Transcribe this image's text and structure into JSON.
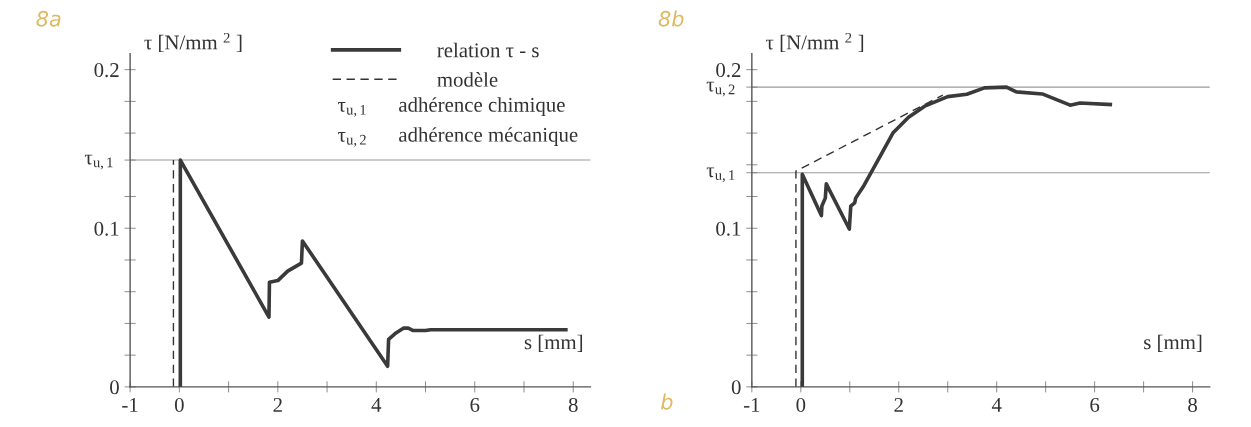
{
  "chart_data": [
    {
      "type": "line",
      "title": "8a",
      "xlabel": "s [mm]",
      "ylabel": "τ [N/mm $^{2}$ ]",
      "xlim": [
        -1,
        8.35
      ],
      "ylim": [
        0,
        0.21
      ],
      "xticks": [
        -1,
        0,
        {
          "value": 1,
          "label": null
        },
        2,
        {
          "value": 3,
          "label": null
        },
        4,
        {
          "value": 5,
          "label": null
        },
        6,
        {
          "value": 7,
          "label": null
        },
        8
      ],
      "yticks": [
        0,
        {
          "value": 0.02,
          "label": null
        },
        {
          "value": 0.04,
          "label": null
        },
        {
          "value": 0.06,
          "label": null
        },
        {
          "value": 0.08,
          "label": null
        },
        0.1,
        {
          "value": 0.12,
          "label": null
        },
        {
          "value": 0.143,
          "label": null
        },
        {
          "value": 0.16,
          "label": null
        },
        {
          "value": 0.18,
          "label": null
        },
        0.2
      ],
      "ref_lines": [
        {
          "axis": "y",
          "value": 0.143,
          "color": "#999999",
          "label": "τ$_{u,1}$"
        }
      ],
      "legend": "top right",
      "grid": false,
      "annotations": [
        "τ$_{u,1}$      adhérence chimique",
        "τ$_{u,2}$      adhérence mécanique"
      ],
      "series": [
        {
          "name": "relation τ - s",
          "color": "#3a3a3a",
          "line_style": "solid",
          "x": [
            0.02,
            0.02,
            1.82,
            1.83,
            2.0,
            2.2,
            2.48,
            2.5,
            4.23,
            4.25,
            4.4,
            4.55,
            4.65,
            4.75,
            5.0,
            5.1,
            7.85
          ],
          "values": [
            0,
            0.143,
            0.044,
            0.066,
            0.067,
            0.073,
            0.078,
            0.092,
            0.013,
            0.03,
            0.034,
            0.037,
            0.037,
            0.0355,
            0.0355,
            0.036,
            0.036
          ]
        },
        {
          "name": "modèle",
          "color": "#333333",
          "line_style": "dashed",
          "x": [
            -0.12,
            -0.12
          ],
          "values": [
            0,
            0.143
          ]
        }
      ]
    },
    {
      "type": "line",
      "title": "8b",
      "xlabel": "s [mm]",
      "ylabel": "τ [N/mm $^{2}$ ]",
      "xlim": [
        -1,
        8.35
      ],
      "ylim": [
        0,
        0.21
      ],
      "xticks": [
        -1,
        0,
        {
          "value": 1,
          "label": null
        },
        2,
        {
          "value": 3,
          "label": null
        },
        4,
        {
          "value": 5,
          "label": null
        },
        6,
        {
          "value": 7,
          "label": null
        },
        8
      ],
      "yticks": [
        0,
        {
          "value": 0.02,
          "label": null
        },
        {
          "value": 0.04,
          "label": null
        },
        {
          "value": 0.06,
          "label": null
        },
        {
          "value": 0.08,
          "label": null
        },
        0.1,
        {
          "value": 0.12,
          "label": null
        },
        {
          "value": 0.135,
          "label": null
        },
        {
          "value": 0.14,
          "label": null
        },
        {
          "value": 0.16,
          "label": null
        },
        {
          "value": 0.18,
          "label": null
        },
        {
          "value": 0.189,
          "label": null
        },
        0.2
      ],
      "ref_lines": [
        {
          "axis": "y",
          "value": 0.135,
          "color": "#999999",
          "label": "τ$_{u,1}$"
        },
        {
          "axis": "y",
          "value": 0.189,
          "color": "#999999",
          "label": "τ$_{u,2}$"
        }
      ],
      "grid": false,
      "annotations": [
        "b"
      ],
      "series": [
        {
          "color": "#3a3a3a",
          "line_style": "solid",
          "x": [
            0.03,
            0.03,
            0.42,
            0.43,
            0.5,
            0.52,
            0.99,
            1.02,
            1.1,
            1.12,
            1.29,
            1.63,
            1.88,
            2.2,
            2.53,
            3.0,
            3.39,
            3.75,
            4.2,
            4.4,
            4.93,
            5.5,
            5.7,
            6.32
          ],
          "values": [
            0,
            0.134,
            0.108,
            0.114,
            0.119,
            0.128,
            0.0995,
            0.114,
            0.116,
            0.119,
            0.127,
            0.146,
            0.16,
            0.17,
            0.177,
            0.183,
            0.1845,
            0.1885,
            0.189,
            0.186,
            0.1847,
            0.1776,
            0.179,
            0.178
          ]
        },
        {
          "color": "#333333",
          "line_style": "dashed",
          "x": [
            -0.1,
            -0.1,
            2.9
          ],
          "values": [
            0,
            0.136,
            0.184
          ]
        }
      ]
    }
  ]
}
